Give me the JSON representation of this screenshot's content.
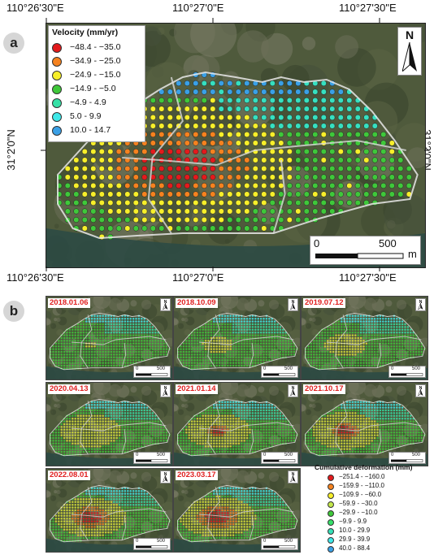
{
  "panel_a": {
    "letter": "a",
    "top_coords": [
      "110°26'30\"E",
      "110°27'0\"E",
      "110°27'30\"E"
    ],
    "bottom_coords": [
      "110°26'30\"E",
      "110°27'0\"E",
      "110°27'30\"E"
    ],
    "left_coord": "31°2'0\"N",
    "right_coord": "31°2'0\"N",
    "north_label": "N",
    "scale_start": "0",
    "scale_end": "500",
    "scale_unit": "m",
    "legend": {
      "title": "Velocity (mm/yr)",
      "items": [
        {
          "label": "−48.4 - −35.0",
          "color": "#e31a1c"
        },
        {
          "label": "−34.9 - −25.0",
          "color": "#f5821f"
        },
        {
          "label": "−24.9 - −15.0",
          "color": "#f7ef2a"
        },
        {
          "label": "−14.9 - −5.0",
          "color": "#3fc83a"
        },
        {
          "label": "−4.9 - 4.9",
          "color": "#36e0a6"
        },
        {
          "label": "5.0 - 9.9",
          "color": "#3ee8e8"
        },
        {
          "label": "10.0 - 14.7",
          "color": "#3aa0e6"
        }
      ]
    }
  },
  "panel_b": {
    "letter": "b",
    "maps": [
      {
        "date": "2018.01.06",
        "red": 0.0,
        "yellow": 0.15
      },
      {
        "date": "2018.10.09",
        "red": 0.0,
        "yellow": 0.4
      },
      {
        "date": "2019.07.12",
        "red": 0.0,
        "yellow": 0.55
      },
      {
        "date": "2020.04.13",
        "red": 0.0,
        "yellow": 0.8
      },
      {
        "date": "2021.01.14",
        "red": 0.35,
        "yellow": 0.85
      },
      {
        "date": "2021.10.17",
        "red": 0.55,
        "yellow": 0.9
      },
      {
        "date": "2022.08.01",
        "red": 0.8,
        "yellow": 0.95
      },
      {
        "date": "2023.03.17",
        "red": 0.9,
        "yellow": 1.0
      }
    ],
    "small_north": "N",
    "small_scale_start": "0",
    "small_scale_end": "500",
    "legend": {
      "title": "Cumulative deformation (mm)",
      "items": [
        {
          "label": "−251.4 - −160.0",
          "color": "#e31a1c"
        },
        {
          "label": "−159.9 - −110.0",
          "color": "#f5821f"
        },
        {
          "label": "−109.9 - −60.0",
          "color": "#f7ef2a"
        },
        {
          "label": "−59.9 - −30.0",
          "color": "#c4e84a"
        },
        {
          "label": "−29.9 - −10.0",
          "color": "#3fc83a"
        },
        {
          "label": "−9.9 - 9.9",
          "color": "#36e06a"
        },
        {
          "label": "10.0 - 29.9",
          "color": "#36e0b8"
        },
        {
          "label": "29.9 - 39.9",
          "color": "#3ee8e8"
        },
        {
          "label": "40.0 - 88.4",
          "color": "#3aa0e6"
        }
      ]
    }
  }
}
